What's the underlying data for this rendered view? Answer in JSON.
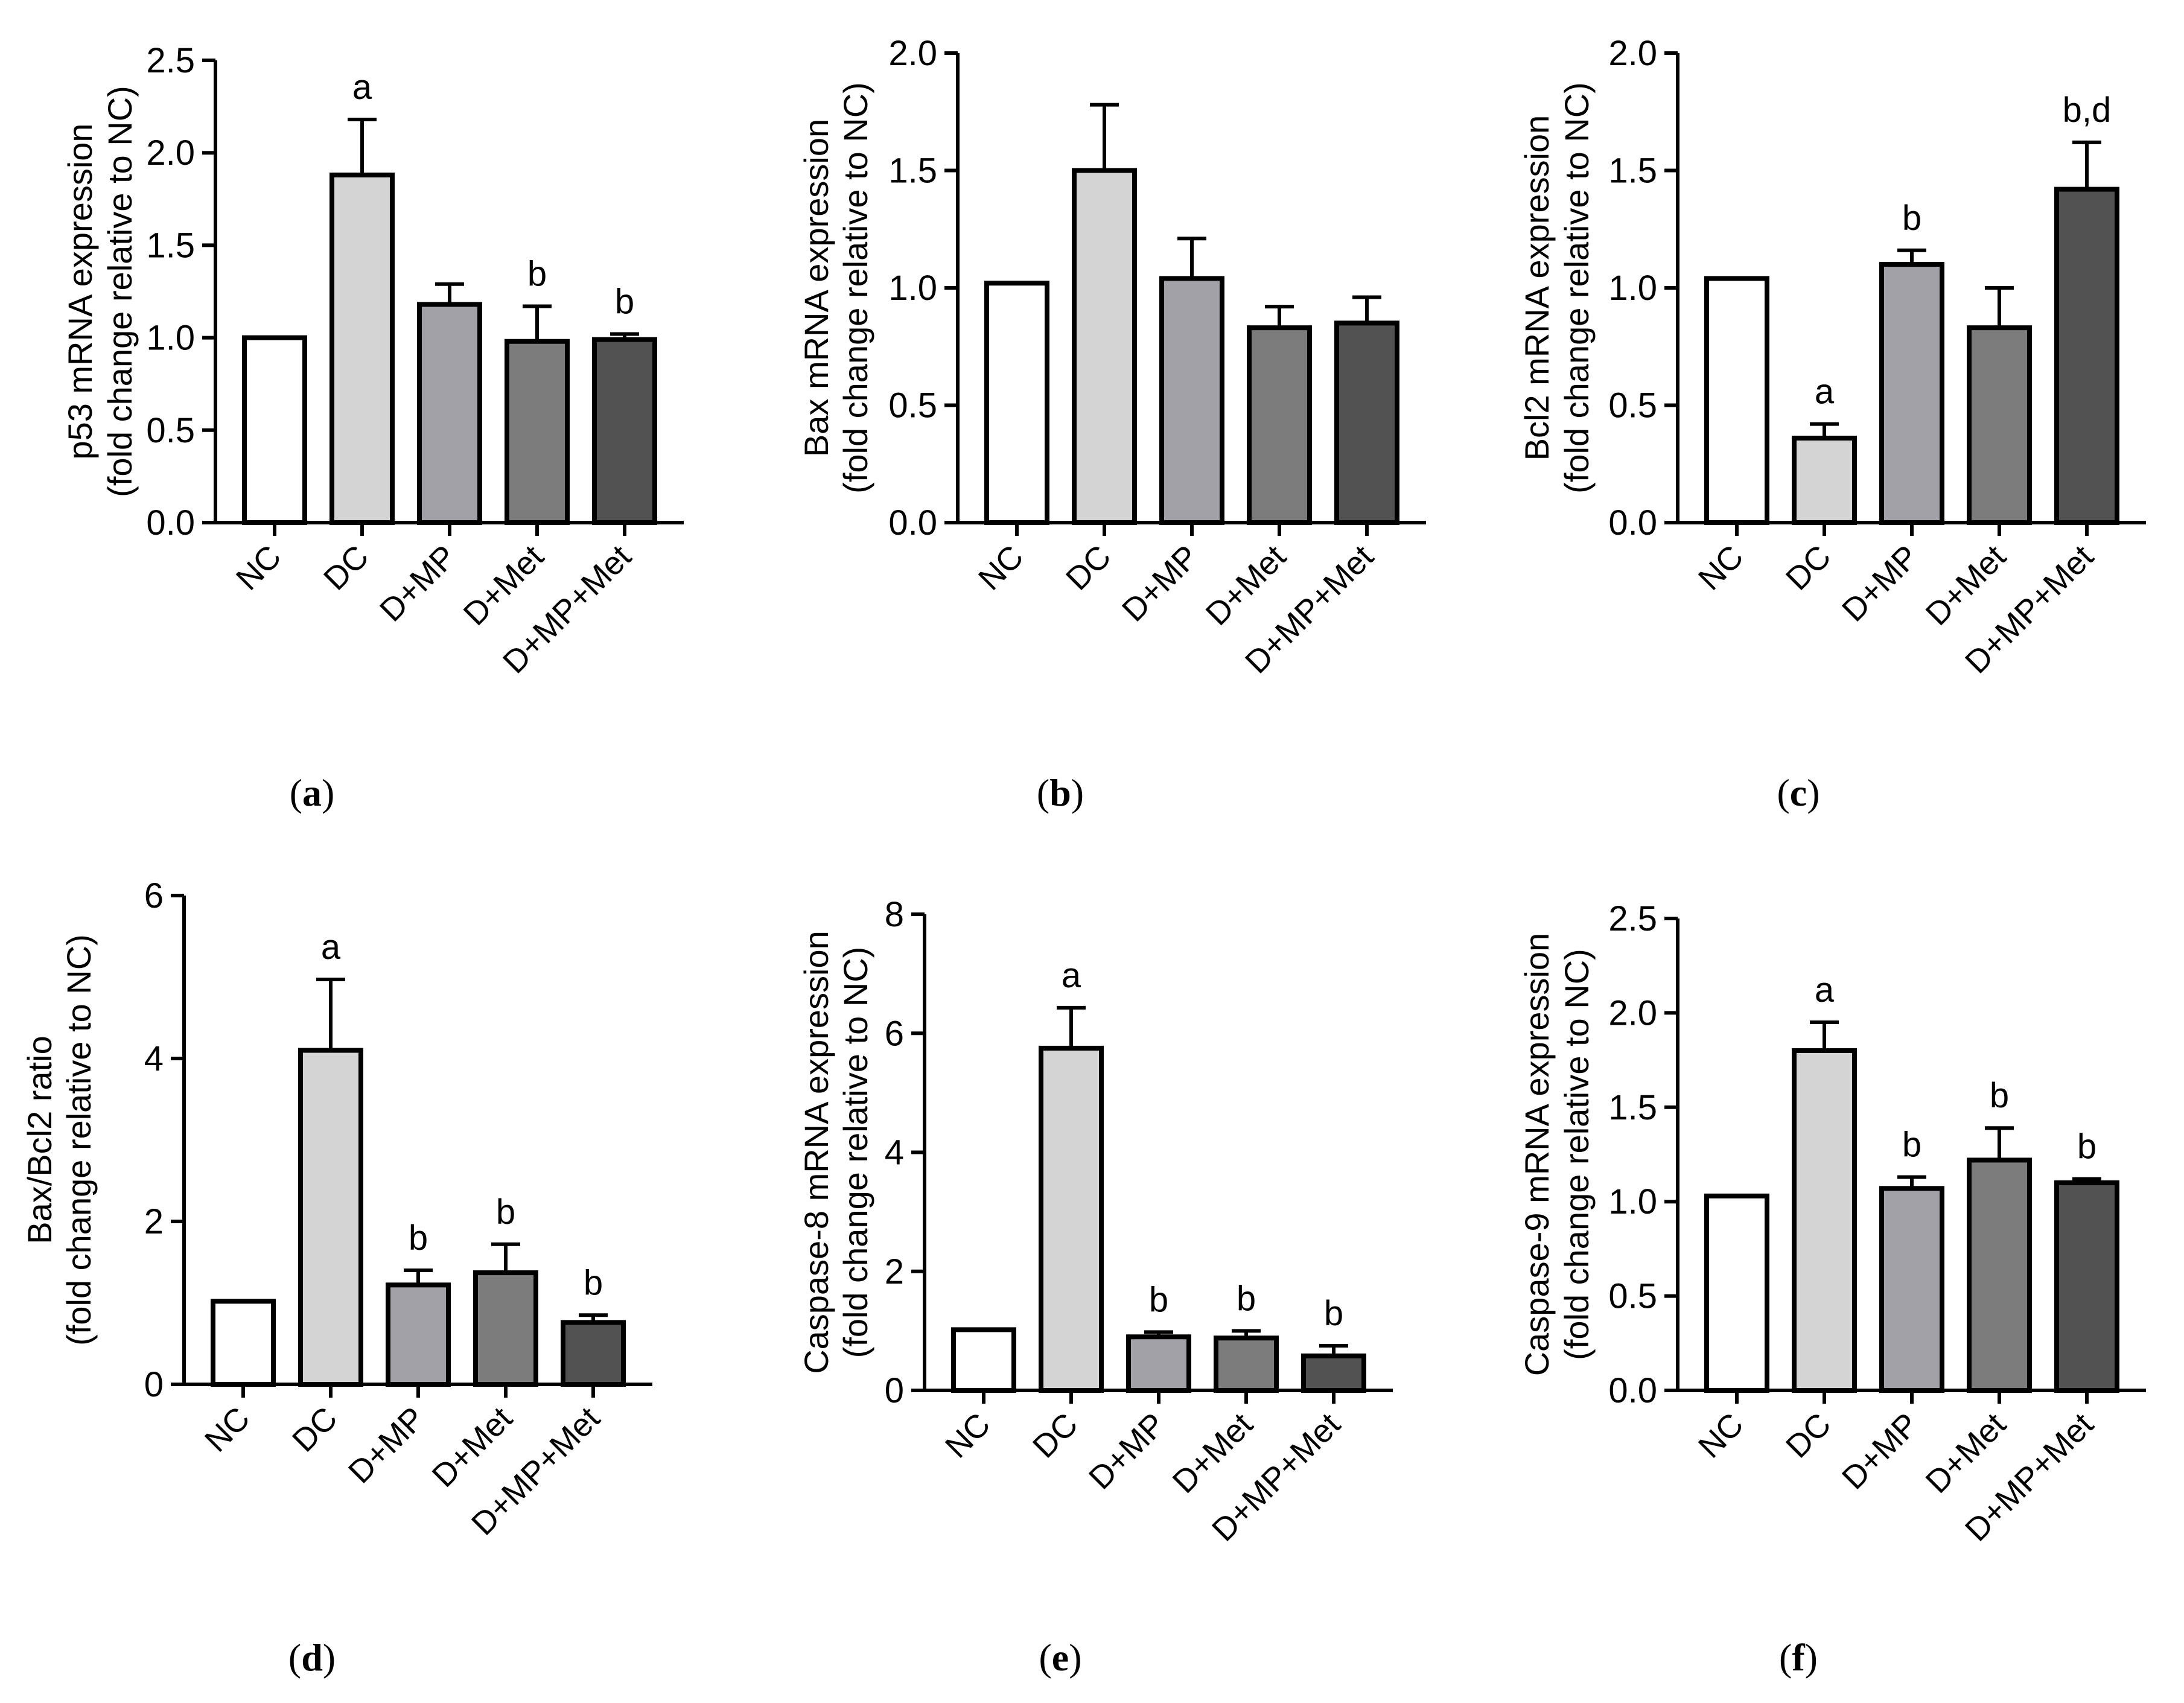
{
  "figure": {
    "bar_colors": [
      "#ffffff",
      "#d4d4d4",
      "#a2a1a8",
      "#7c7c7c",
      "#525252"
    ],
    "axis_color": "#000000"
  },
  "chart_data": [
    {
      "type": "bar",
      "panel_label": "(a)",
      "panel_letter": "a",
      "ylabel_line1": "p53 mRNA expression",
      "ylabel_line2": "(fold change relative to NC)",
      "categories": [
        "NC",
        "DC",
        "D+MP",
        "D+Met",
        "D+MP+Met"
      ],
      "values": [
        1.0,
        1.88,
        1.18,
        0.98,
        0.99
      ],
      "errors": [
        0.0,
        0.3,
        0.11,
        0.19,
        0.03
      ],
      "annotations": [
        "",
        "a",
        "",
        "b",
        "b"
      ],
      "ylim": [
        0,
        2.5
      ],
      "yticks": [
        "0.0",
        "0.5",
        "1.0",
        "1.5",
        "2.0",
        "2.5"
      ]
    },
    {
      "type": "bar",
      "panel_label": "(b)",
      "panel_letter": "b",
      "ylabel_line1": "Bax mRNA expression",
      "ylabel_line2": "(fold change relative to NC)",
      "categories": [
        "NC",
        "DC",
        "D+MP",
        "D+Met",
        "D+MP+Met"
      ],
      "values": [
        1.02,
        1.5,
        1.04,
        0.83,
        0.85
      ],
      "errors": [
        0.0,
        0.28,
        0.17,
        0.09,
        0.11
      ],
      "annotations": [
        "",
        "",
        "",
        "",
        ""
      ],
      "ylim": [
        0,
        2.0
      ],
      "yticks": [
        "0.0",
        "0.5",
        "1.0",
        "1.5",
        "2.0"
      ]
    },
    {
      "type": "bar",
      "panel_label": "(c)",
      "panel_letter": "c",
      "ylabel_line1": "Bcl2 mRNA expression",
      "ylabel_line2": "(fold change relative to NC)",
      "categories": [
        "NC",
        "DC",
        "D+MP",
        "D+Met",
        "D+MP+Met"
      ],
      "values": [
        1.04,
        0.36,
        1.1,
        0.83,
        1.42
      ],
      "errors": [
        0.0,
        0.06,
        0.06,
        0.17,
        0.2
      ],
      "annotations": [
        "",
        "a",
        "b",
        "",
        "b,d"
      ],
      "ylim": [
        0,
        2.0
      ],
      "yticks": [
        "0.0",
        "0.5",
        "1.0",
        "1.5",
        "2.0"
      ]
    },
    {
      "type": "bar",
      "panel_label": "(d)",
      "panel_letter": "d",
      "ylabel_line1": "Bax/Bcl2 ratio",
      "ylabel_line2": "(fold change relative to NC)",
      "categories": [
        "NC",
        "DC",
        "D+MP",
        "D+Met",
        "D+MP+Met"
      ],
      "values": [
        1.02,
        4.1,
        1.22,
        1.37,
        0.76
      ],
      "errors": [
        0.0,
        0.87,
        0.18,
        0.35,
        0.09
      ],
      "annotations": [
        "",
        "a",
        "b",
        "b",
        "b"
      ],
      "ylim": [
        0,
        6
      ],
      "yticks": [
        "0",
        "2",
        "4",
        "6"
      ]
    },
    {
      "type": "bar",
      "panel_label": "(e)",
      "panel_letter": "e",
      "ylabel_line1": "Caspase-8 mRNA expression",
      "ylabel_line2": "(fold change relative to NC)",
      "categories": [
        "NC",
        "DC",
        "D+MP",
        "D+Met",
        "D+MP+Met"
      ],
      "values": [
        1.02,
        5.75,
        0.9,
        0.88,
        0.58
      ],
      "errors": [
        0.0,
        0.68,
        0.08,
        0.12,
        0.17
      ],
      "annotations": [
        "",
        "a",
        "b",
        "b",
        "b"
      ],
      "ylim": [
        0,
        8
      ],
      "yticks": [
        "0",
        "2",
        "4",
        "6",
        "8"
      ]
    },
    {
      "type": "bar",
      "panel_label": "(f)",
      "panel_letter": "f",
      "ylabel_line1": "Caspase-9 mRNA expression",
      "ylabel_line2": "(fold change relative to NC)",
      "categories": [
        "NC",
        "DC",
        "D+MP",
        "D+Met",
        "D+MP+Met"
      ],
      "values": [
        1.03,
        1.8,
        1.07,
        1.22,
        1.1
      ],
      "errors": [
        0.0,
        0.15,
        0.06,
        0.17,
        0.02
      ],
      "annotations": [
        "",
        "a",
        "b",
        "b",
        "b"
      ],
      "ylim": [
        0,
        2.5
      ],
      "yticks": [
        "0.0",
        "0.5",
        "1.0",
        "1.5",
        "2.0",
        "2.5"
      ]
    }
  ]
}
